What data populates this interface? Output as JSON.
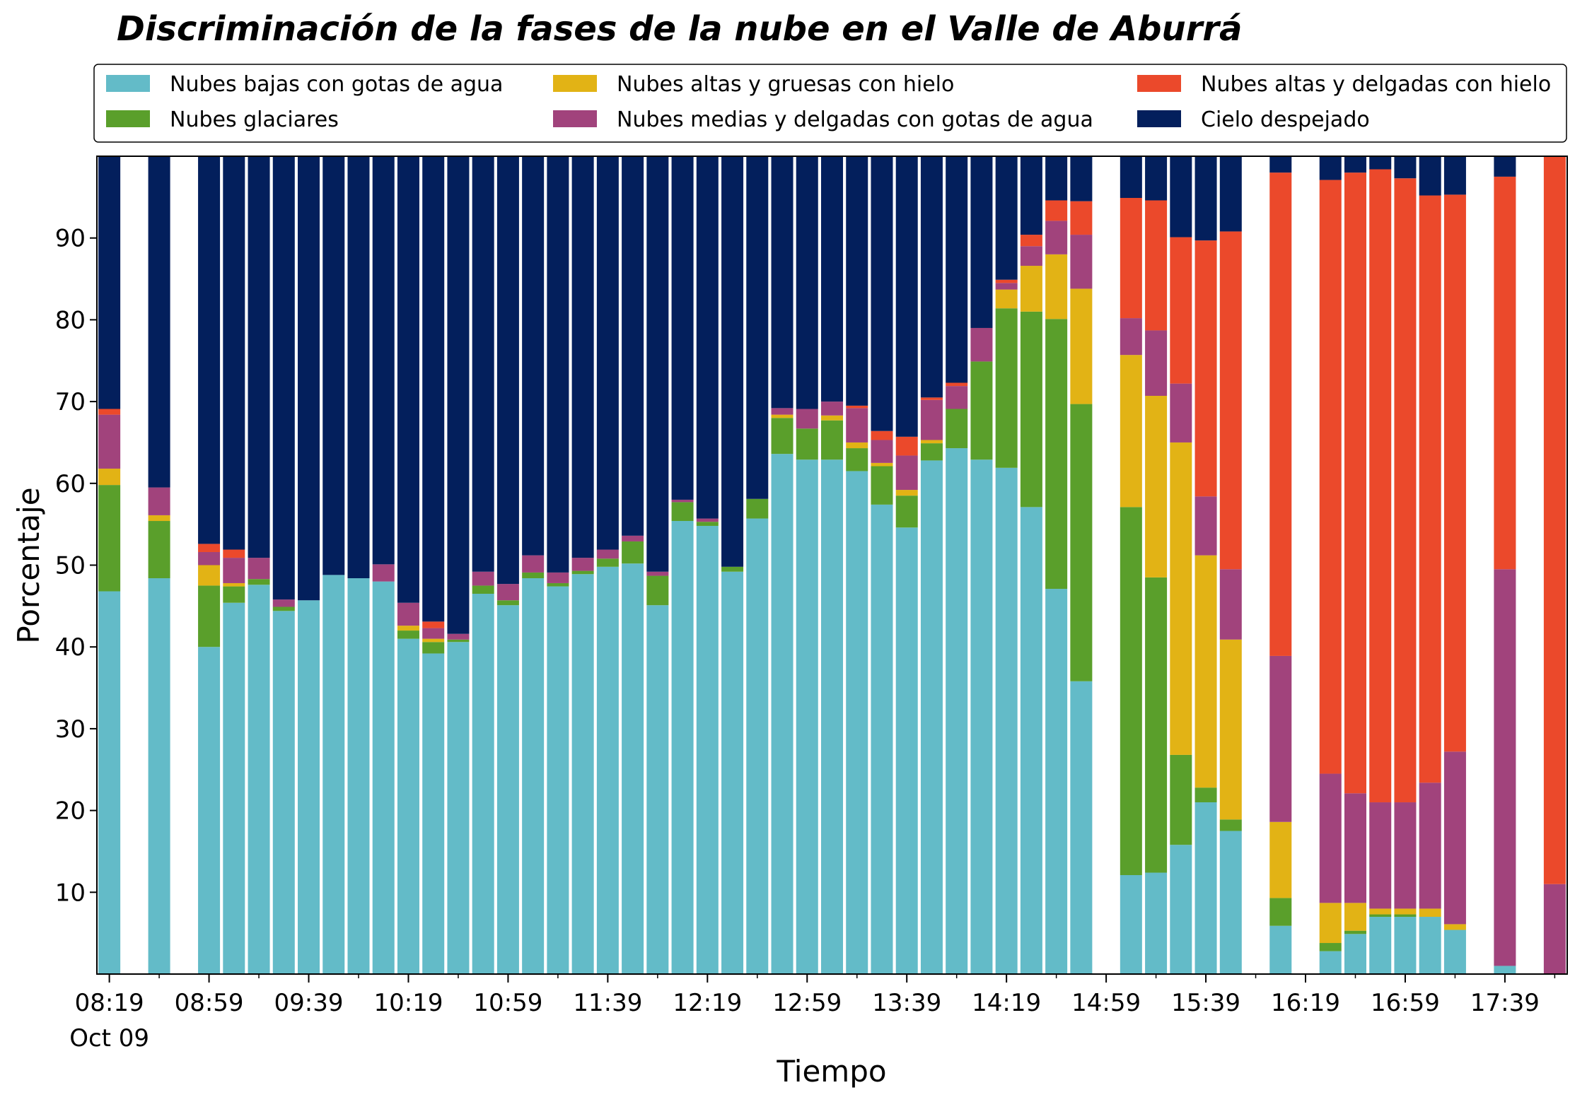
{
  "chart_data": {
    "type": "bar",
    "stacked": true,
    "title": "Discriminación de la fases de la nube en el Valle de Aburrá",
    "xlabel": "Tiempo",
    "ylabel": "Porcentaje",
    "ylim": [
      0,
      100
    ],
    "yticks": [
      10,
      20,
      30,
      40,
      50,
      60,
      70,
      80,
      90
    ],
    "x_start_minutes": 499,
    "x_step_minutes": 10,
    "xticks_major": [
      {
        "label": "08:19",
        "sub": "Oct 09",
        "index": 0
      },
      {
        "label": "08:59",
        "index": 4
      },
      {
        "label": "09:39",
        "index": 8
      },
      {
        "label": "10:19",
        "index": 12
      },
      {
        "label": "10:59",
        "index": 16
      },
      {
        "label": "11:39",
        "index": 20
      },
      {
        "label": "12:19",
        "index": 24
      },
      {
        "label": "12:59",
        "index": 28
      },
      {
        "label": "13:39",
        "index": 32
      },
      {
        "label": "14:19",
        "index": 36
      },
      {
        "label": "14:59",
        "index": 40
      },
      {
        "label": "15:39",
        "index": 44
      },
      {
        "label": "16:19",
        "index": 48
      },
      {
        "label": "16:59",
        "index": 52
      },
      {
        "label": "17:39",
        "index": 56
      }
    ],
    "legend": {
      "position": "top",
      "columns": 3,
      "frame": true
    },
    "series": [
      {
        "name": "Nubes bajas con gotas de agua",
        "color": "#63BBC8"
      },
      {
        "name": "Nubes glaciares",
        "color": "#5A9F2B"
      },
      {
        "name": "Nubes altas y gruesas con hielo",
        "color": "#E2B315"
      },
      {
        "name": "Nubes medias y delgadas con gotas de agua",
        "color": "#A1437C"
      },
      {
        "name": "Nubes altas y delgadas con hielo",
        "color": "#EB492B"
      },
      {
        "name": "Cielo despejado",
        "color": "#031F5C"
      }
    ],
    "bars": [
      {
        "index": 0,
        "time": "08:19",
        "values": [
          46.8,
          13.0,
          2.0,
          6.6,
          0.7,
          30.9
        ]
      },
      {
        "index": 2,
        "time": "08:39",
        "values": [
          48.4,
          7.0,
          0.7,
          3.4,
          0.0,
          40.5
        ]
      },
      {
        "index": 4,
        "time": "08:59",
        "values": [
          40.0,
          7.5,
          2.5,
          1.6,
          1.0,
          47.4
        ]
      },
      {
        "index": 5,
        "time": "09:09",
        "values": [
          45.4,
          2.0,
          0.4,
          3.1,
          1.0,
          48.1
        ]
      },
      {
        "index": 6,
        "time": "09:19",
        "values": [
          47.6,
          0.7,
          0.0,
          2.6,
          0.0,
          49.1
        ]
      },
      {
        "index": 7,
        "time": "09:29",
        "values": [
          44.4,
          0.5,
          0.0,
          0.9,
          0.0,
          54.2
        ]
      },
      {
        "index": 8,
        "time": "09:39",
        "values": [
          45.7,
          0.0,
          0.0,
          0.0,
          0.0,
          54.3
        ]
      },
      {
        "index": 9,
        "time": "09:49",
        "values": [
          48.8,
          0.0,
          0.0,
          0.0,
          0.0,
          51.2
        ]
      },
      {
        "index": 10,
        "time": "09:59",
        "values": [
          48.4,
          0.0,
          0.0,
          0.0,
          0.0,
          51.6
        ]
      },
      {
        "index": 11,
        "time": "10:09",
        "values": [
          48.0,
          0.0,
          0.0,
          2.1,
          0.0,
          49.9
        ]
      },
      {
        "index": 12,
        "time": "10:19",
        "values": [
          41.0,
          1.0,
          0.6,
          2.8,
          0.0,
          54.6
        ]
      },
      {
        "index": 13,
        "time": "10:29",
        "values": [
          39.2,
          1.4,
          0.4,
          1.3,
          0.8,
          56.9
        ]
      },
      {
        "index": 14,
        "time": "10:39",
        "values": [
          40.6,
          0.3,
          0.0,
          0.7,
          0.0,
          58.4
        ]
      },
      {
        "index": 15,
        "time": "10:49",
        "values": [
          46.5,
          1.0,
          0.0,
          1.7,
          0.0,
          50.8
        ]
      },
      {
        "index": 16,
        "time": "10:59",
        "values": [
          45.1,
          0.6,
          0.0,
          2.0,
          0.0,
          52.3
        ]
      },
      {
        "index": 17,
        "time": "11:09",
        "values": [
          48.4,
          0.7,
          0.0,
          2.1,
          0.0,
          48.8
        ]
      },
      {
        "index": 18,
        "time": "11:19",
        "values": [
          47.4,
          0.4,
          0.0,
          1.3,
          0.0,
          50.9
        ]
      },
      {
        "index": 19,
        "time": "11:29",
        "values": [
          48.9,
          0.4,
          0.0,
          1.6,
          0.0,
          49.1
        ]
      },
      {
        "index": 20,
        "time": "11:39",
        "values": [
          49.8,
          1.0,
          0.0,
          1.1,
          0.0,
          48.1
        ]
      },
      {
        "index": 21,
        "time": "11:49",
        "values": [
          50.2,
          2.7,
          0.0,
          0.7,
          0.0,
          46.4
        ]
      },
      {
        "index": 22,
        "time": "11:59",
        "values": [
          45.1,
          3.6,
          0.0,
          0.5,
          0.0,
          50.8
        ]
      },
      {
        "index": 23,
        "time": "12:09",
        "values": [
          55.4,
          2.3,
          0.0,
          0.3,
          0.0,
          42.0
        ]
      },
      {
        "index": 24,
        "time": "12:19",
        "values": [
          54.8,
          0.5,
          0.0,
          0.4,
          0.0,
          44.3
        ]
      },
      {
        "index": 25,
        "time": "12:29",
        "values": [
          49.2,
          0.6,
          0.0,
          0.0,
          0.0,
          50.2
        ]
      },
      {
        "index": 26,
        "time": "12:39",
        "values": [
          55.7,
          2.4,
          0.0,
          0.0,
          0.0,
          41.9
        ]
      },
      {
        "index": 27,
        "time": "12:49",
        "values": [
          63.6,
          4.4,
          0.4,
          0.8,
          0.0,
          30.8
        ]
      },
      {
        "index": 28,
        "time": "12:59",
        "values": [
          62.9,
          3.8,
          0.0,
          2.4,
          0.0,
          30.9
        ]
      },
      {
        "index": 29,
        "time": "13:09",
        "values": [
          62.9,
          4.8,
          0.6,
          1.7,
          0.0,
          30.0
        ]
      },
      {
        "index": 30,
        "time": "13:19",
        "values": [
          61.5,
          2.8,
          0.7,
          4.2,
          0.3,
          30.5
        ]
      },
      {
        "index": 31,
        "time": "13:29",
        "values": [
          57.4,
          4.7,
          0.4,
          2.8,
          1.1,
          33.6
        ]
      },
      {
        "index": 32,
        "time": "13:39",
        "values": [
          54.6,
          3.9,
          0.7,
          4.2,
          2.3,
          34.3
        ]
      },
      {
        "index": 33,
        "time": "13:49",
        "values": [
          62.8,
          2.1,
          0.4,
          4.9,
          0.3,
          29.5
        ]
      },
      {
        "index": 34,
        "time": "13:59",
        "values": [
          64.3,
          4.8,
          0.0,
          2.8,
          0.4,
          27.7
        ]
      },
      {
        "index": 35,
        "time": "14:09",
        "values": [
          62.9,
          12.0,
          0.0,
          4.1,
          0.0,
          21.0
        ]
      },
      {
        "index": 36,
        "time": "14:19",
        "values": [
          61.9,
          19.5,
          2.3,
          0.8,
          0.4,
          15.1
        ]
      },
      {
        "index": 37,
        "time": "14:29",
        "values": [
          57.1,
          23.9,
          5.6,
          2.4,
          1.4,
          9.6
        ]
      },
      {
        "index": 38,
        "time": "14:39",
        "values": [
          47.1,
          33.0,
          7.9,
          4.1,
          2.5,
          5.4
        ]
      },
      {
        "index": 39,
        "time": "14:49",
        "values": [
          35.8,
          33.9,
          14.1,
          6.6,
          4.1,
          5.5
        ]
      },
      {
        "index": 41,
        "time": "15:09",
        "values": [
          12.1,
          45.0,
          18.6,
          4.5,
          14.7,
          5.1
        ]
      },
      {
        "index": 42,
        "time": "15:19",
        "values": [
          12.4,
          36.1,
          22.2,
          8.0,
          15.9,
          5.4
        ]
      },
      {
        "index": 43,
        "time": "15:29",
        "values": [
          15.8,
          11.0,
          38.2,
          7.2,
          17.9,
          9.9
        ]
      },
      {
        "index": 44,
        "time": "15:39",
        "values": [
          21.0,
          1.8,
          28.4,
          7.2,
          31.3,
          10.3
        ]
      },
      {
        "index": 45,
        "time": "15:49",
        "values": [
          17.5,
          1.4,
          22.0,
          8.6,
          41.3,
          9.2
        ]
      },
      {
        "index": 47,
        "time": "16:09",
        "values": [
          5.9,
          3.4,
          9.3,
          20.3,
          59.1,
          2.0
        ]
      },
      {
        "index": 49,
        "time": "16:29",
        "values": [
          2.8,
          1.0,
          4.9,
          15.8,
          72.6,
          2.9
        ]
      },
      {
        "index": 50,
        "time": "16:39",
        "values": [
          4.9,
          0.4,
          3.4,
          13.4,
          75.9,
          2.0
        ]
      },
      {
        "index": 51,
        "time": "16:49",
        "values": [
          7.0,
          0.3,
          0.7,
          13.0,
          77.4,
          1.6
        ]
      },
      {
        "index": 52,
        "time": "16:59",
        "values": [
          7.0,
          0.3,
          0.7,
          13.0,
          76.3,
          2.7
        ]
      },
      {
        "index": 53,
        "time": "17:09",
        "values": [
          7.0,
          0.0,
          1.0,
          15.4,
          71.8,
          4.8
        ]
      },
      {
        "index": 54,
        "time": "17:19",
        "values": [
          5.4,
          0.0,
          0.7,
          21.1,
          68.1,
          4.7
        ]
      },
      {
        "index": 56,
        "time": "17:39",
        "values": [
          1.0,
          0.0,
          0.0,
          48.5,
          48.0,
          2.5
        ]
      },
      {
        "index": 58,
        "time": "17:59",
        "values": [
          0.0,
          0.0,
          0.0,
          11.0,
          89.0,
          0.0
        ]
      }
    ]
  }
}
